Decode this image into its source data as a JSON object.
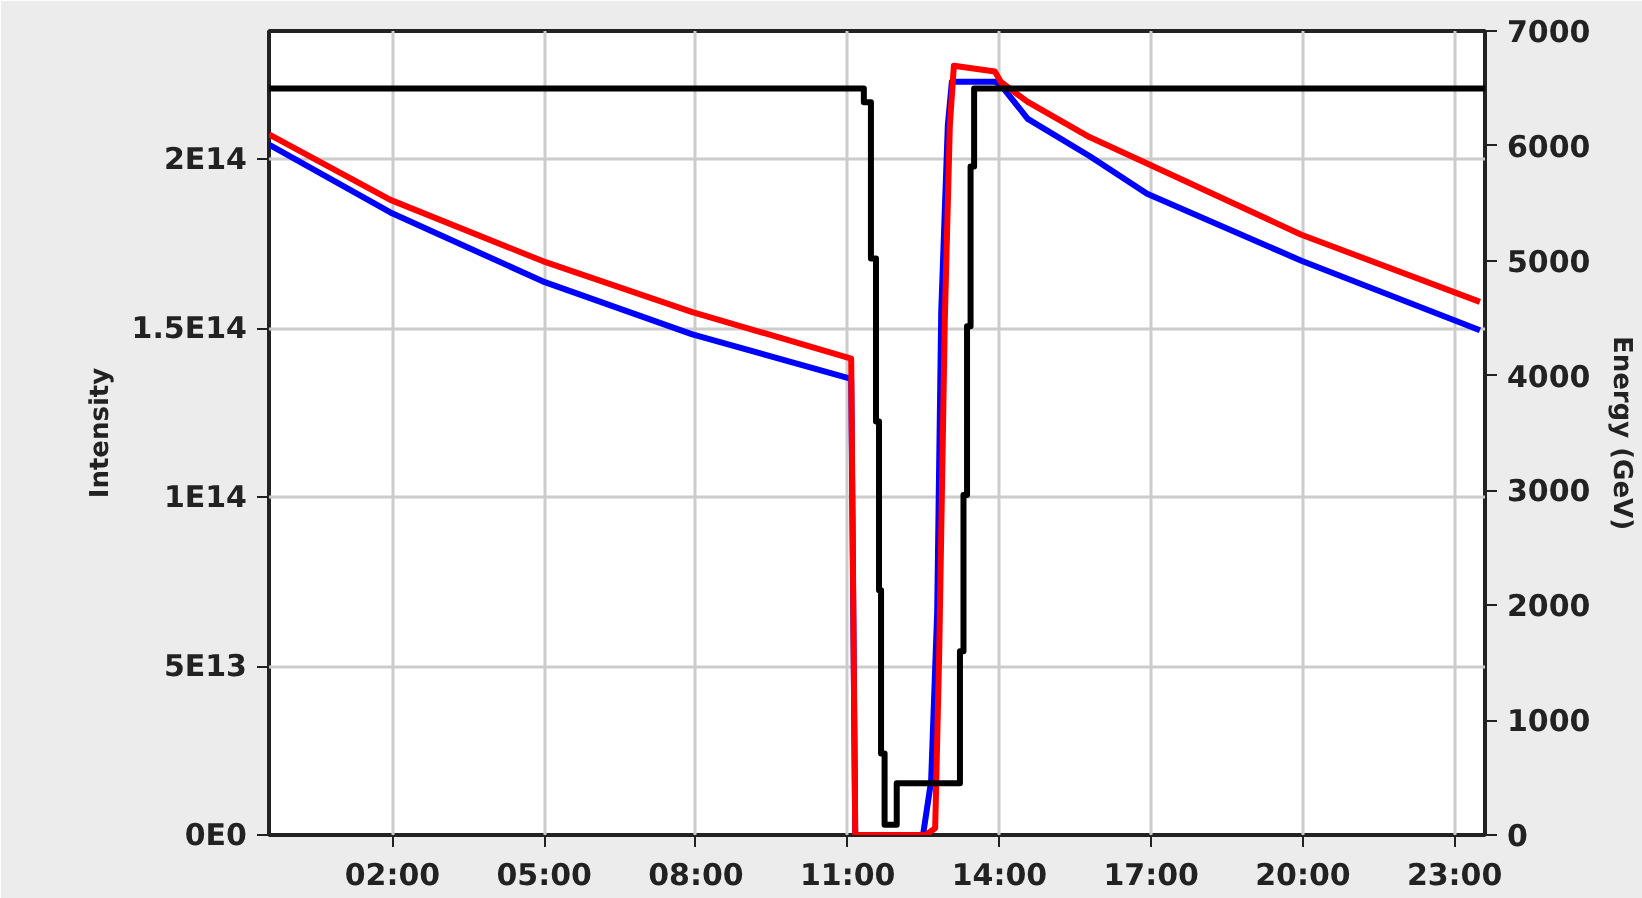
{
  "chart_data": {
    "type": "line",
    "ylabel": "Intensity",
    "y2label": "Energy (GeV)",
    "xlim": [
      -0.44,
      23.6
    ],
    "xticks": [
      {
        "value": 2,
        "label": "02:00"
      },
      {
        "value": 5,
        "label": "05:00"
      },
      {
        "value": 8,
        "label": "08:00"
      },
      {
        "value": 11,
        "label": "11:00"
      },
      {
        "value": 14,
        "label": "14:00"
      },
      {
        "value": 17,
        "label": "17:00"
      },
      {
        "value": 20,
        "label": "20:00"
      },
      {
        "value": 23,
        "label": "23:00"
      }
    ],
    "ylim": [
      0,
      238000000000000.0
    ],
    "yticks": [
      {
        "value": 0,
        "label": "0E0"
      },
      {
        "value": 50000000000000.0,
        "label": "5E13"
      },
      {
        "value": 100000000000000.0,
        "label": "1E14"
      },
      {
        "value": 150000000000000.0,
        "label": "1.5E14"
      },
      {
        "value": 200000000000000.0,
        "label": "2E14"
      }
    ],
    "y2lim": [
      0,
      7000
    ],
    "y2ticks": [
      0,
      1000,
      2000,
      3000,
      4000,
      5000,
      6000,
      7000
    ],
    "grid": true,
    "line_style": "solid",
    "series": [
      {
        "color": "#0000ff",
        "x": [
          -0.44,
          1.96,
          4.97,
          7.93,
          11.07,
          11.15,
          12.49,
          12.65,
          12.77,
          12.85,
          12.98,
          13.06,
          13.91,
          14.03,
          14.56,
          15.78,
          16.92,
          19.97,
          23.5
        ],
        "values": [
          204400000000000.0,
          184300000000000.0,
          163900000000000.0,
          148200000000000.0,
          135000000000000.0,
          0,
          0,
          16000000000000.0,
          66000000000000.0,
          155000000000000.0,
          210000000000000.0,
          223000000000000.0,
          223000000000000.0,
          222000000000000.0,
          212000000000000.0,
          201000000000000.0,
          189800000000000.0,
          170000000000000.0,
          149400000000000.0
        ]
      },
      {
        "color": "#ff0000",
        "x": [
          -0.44,
          1.96,
          4.97,
          7.93,
          11.07,
          11.15,
          12.54,
          12.73,
          12.81,
          12.92,
          13.02,
          13.1,
          13.91,
          14.03,
          14.56,
          15.78,
          16.92,
          19.97,
          23.5
        ],
        "values": [
          207400000000000.0,
          188000000000000.0,
          169900000000000.0,
          154800000000000.0,
          141000000000000.0,
          0,
          0,
          2000000000000.0,
          54000000000000.0,
          152000000000000.0,
          210000000000000.0,
          227700000000000.0,
          226000000000000.0,
          222900000000000.0,
          217000000000000.0,
          206600000000000.0,
          198800000000000.0,
          177700000000000.0,
          157800000000000.0
        ]
      },
      {
        "color": "#000000",
        "type": "step",
        "axis": "y2",
        "x": [
          -0.44,
          11.32,
          11.46,
          11.56,
          11.62,
          11.66,
          11.73,
          11.97,
          13.22,
          13.29,
          13.36,
          13.43,
          13.5,
          23.6
        ],
        "values": [
          6500,
          6380,
          5020,
          3600,
          2130,
          710,
          90,
          450,
          1600,
          2960,
          4430,
          5820,
          6500,
          6500
        ]
      }
    ]
  }
}
